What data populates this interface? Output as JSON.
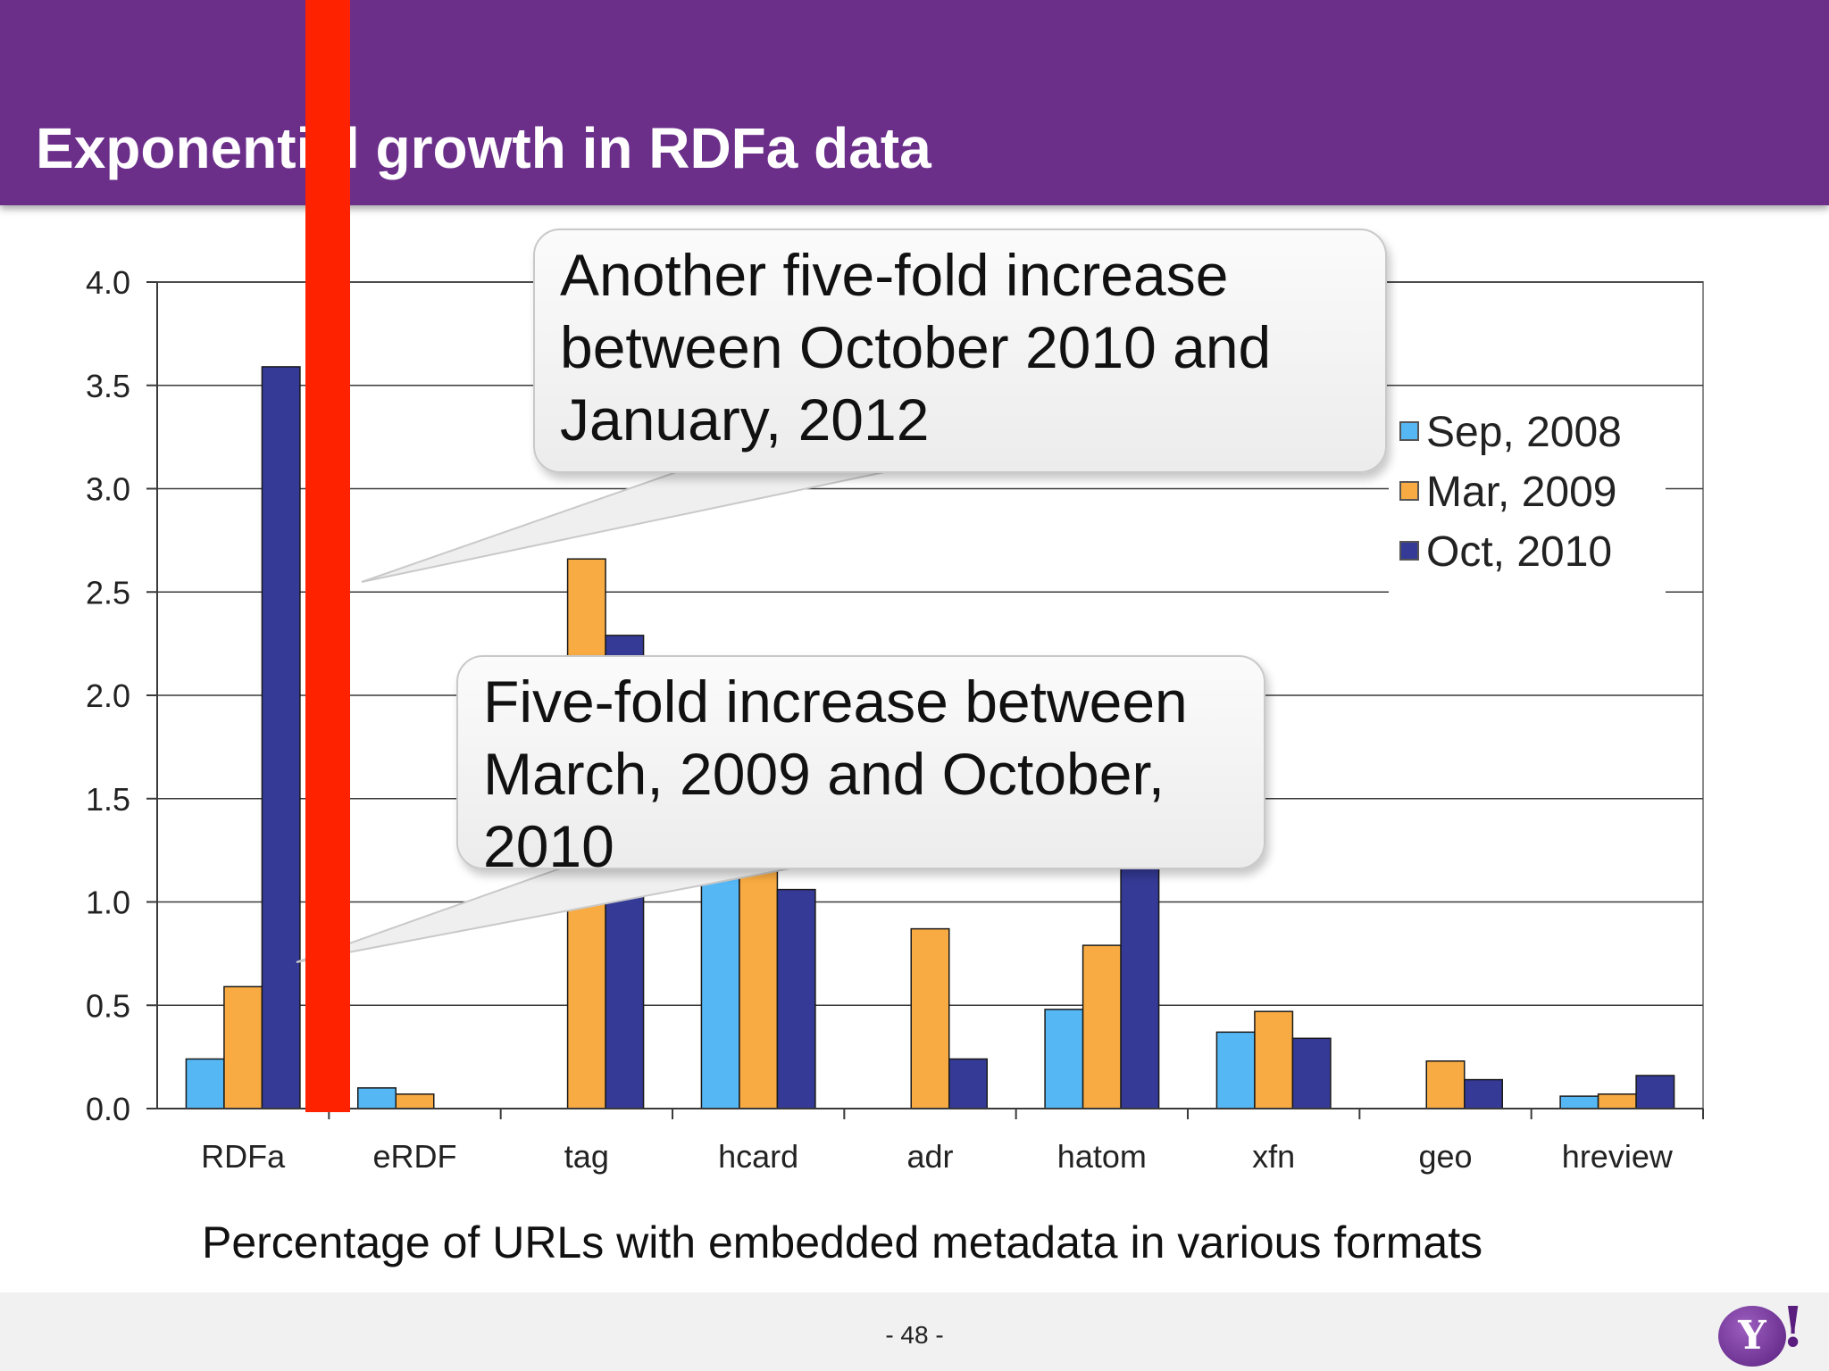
{
  "slide": {
    "title": "Exponential growth in RDFa data",
    "caption": "Percentage of URLs with embedded metadata in various formats",
    "page_number": "- 48 -",
    "logo_text": "Y",
    "logo_mark": "!"
  },
  "callouts": [
    {
      "text": "Another five-fold increase between October 2010 and January, 2012"
    },
    {
      "text": "Five-fold increase between March, 2009 and October, 2010"
    }
  ],
  "colors": {
    "header": "#6b2f8a",
    "sep_2008": "#55b8f5",
    "mar_2009": "#f8ab42",
    "oct_2010": "#353a96",
    "marker": "#ff2200",
    "grid": "#3a3a3a"
  },
  "chart_data": {
    "type": "bar",
    "title": "",
    "xlabel": "",
    "ylabel": "",
    "ylim": [
      0,
      4.0
    ],
    "yticks": [
      "0.0",
      "0.5",
      "1.0",
      "1.5",
      "2.0",
      "2.5",
      "3.0",
      "3.5",
      "4.0"
    ],
    "grid": true,
    "legend_position": "right",
    "categories": [
      "RDFa",
      "eRDF",
      "tag",
      "hcard",
      "adr",
      "hatom",
      "xfn",
      "geo",
      "hreview"
    ],
    "series": [
      {
        "name": "Sep, 2008",
        "color": "#55b8f5",
        "values": [
          0.24,
          0.1,
          0,
          1.3,
          0,
          0.48,
          0.37,
          0,
          0.06
        ]
      },
      {
        "name": "Mar, 2009",
        "color": "#f8ab42",
        "values": [
          0.59,
          0.07,
          2.66,
          1.6,
          0.87,
          0.79,
          0.47,
          0.23,
          0.07
        ]
      },
      {
        "name": "Oct, 2010",
        "color": "#353a96",
        "values": [
          3.59,
          0,
          2.29,
          1.06,
          0.24,
          1.3,
          0.34,
          0.14,
          0.16
        ]
      }
    ]
  }
}
